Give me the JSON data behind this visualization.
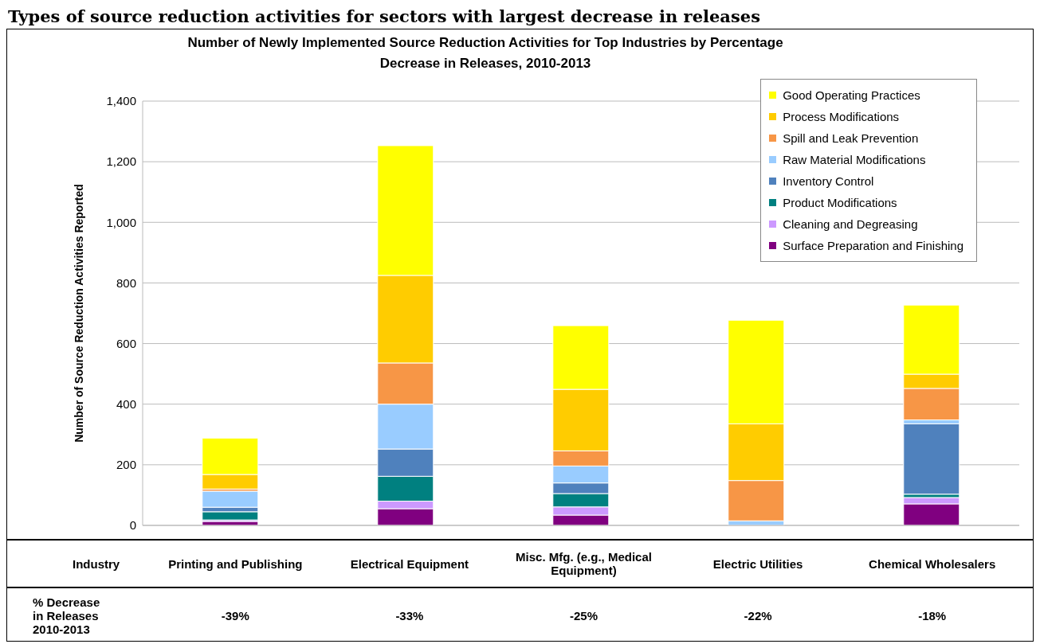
{
  "chart_data": {
    "type": "bar",
    "title": "Number of Newly Implemented Source Reduction Activities for Top Industries by Percentage Decrease in Releases, 2010-2013",
    "ylabel": "Number of Source Reduction Activities Reported",
    "categories": [
      "Printing and Publishing",
      "Electrical Equipment",
      "Misc. Mfg. (e.g., Medical Equipment)",
      "Electric Utilities",
      "Chemical Wholesalers"
    ],
    "stacked": true,
    "series": [
      {
        "name": "Surface Preparation and Finishing",
        "color": "#800080",
        "values": [
          13,
          55,
          34,
          0,
          71
        ]
      },
      {
        "name": "Cleaning and Degreasing",
        "color": "#cc99ff",
        "values": [
          5,
          25,
          27,
          null,
          21
        ]
      },
      {
        "name": "Product Modifications",
        "color": "#008080",
        "values": [
          27,
          82,
          44,
          0,
          11
        ]
      },
      {
        "name": "Inventory Control",
        "color": "#4f81bd",
        "values": [
          15,
          90,
          35,
          0,
          232
        ]
      },
      {
        "name": "Raw Material Modifications",
        "color": "#99ccff",
        "values": [
          53,
          148,
          56,
          15,
          13
        ]
      },
      {
        "name": "Spill and Leak Prevention",
        "color": "#f79646",
        "values": [
          7,
          136,
          50,
          133,
          104
        ]
      },
      {
        "name": "Process Modifications",
        "color": "#ffcc00",
        "values": [
          48,
          289,
          203,
          187,
          47
        ]
      },
      {
        "name": "Good Operating Practices",
        "color": "#ffff00",
        "values": [
          120,
          428,
          210,
          342,
          228
        ]
      }
    ],
    "ylim": [
      0,
      1400
    ],
    "yticks": [
      0,
      {
        "value": 200,
        "label": "200"
      },
      {
        "value": 400,
        "label": "400"
      },
      {
        "value": 600,
        "label": "600"
      },
      {
        "value": 800,
        "label": "800"
      },
      {
        "value": 1000,
        "label": "1,000"
      },
      {
        "value": 1200,
        "label": "1,200"
      },
      {
        "value": 1400,
        "label": "1,400"
      }
    ],
    "grid": "y",
    "legend": "top right",
    "annotations": [
      "Types of source reduction activities for sectors with largest decrease in releases",
      "Industry",
      "% Decrease in Releases 2010-2013",
      "-39%",
      "-33%",
      "-25%",
      "-22%",
      "-18%"
    ]
  }
}
